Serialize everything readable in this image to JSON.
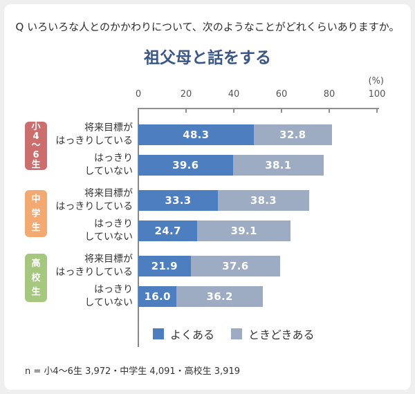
{
  "page": {
    "question": "Q いろいろな人とのかかわりについて、次のようなことがどれくらいありますか。",
    "title": "祖父母と話をする",
    "unit_label": "(%)",
    "footnote": "n = 小4〜6生 3,972・中学生 4,091・高校生 3,919"
  },
  "colors": {
    "title": "#3a5687",
    "bar_often": "#4d7ebf",
    "bar_sometimes": "#9dabc3",
    "axis": "#8f8f8f"
  },
  "chart_data": {
    "type": "bar",
    "orientation": "horizontal",
    "stacked": true,
    "unit": "%",
    "xlim": [
      0,
      100
    ],
    "x_ticks": [
      0,
      20,
      40,
      60,
      80,
      100
    ],
    "legend_position": "bottom",
    "legend": [
      {
        "label": "よくある",
        "color": "#4d7ebf"
      },
      {
        "label": "ときどきある",
        "color": "#9dabc3"
      }
    ],
    "groups": [
      {
        "group_label": "小4〜6生",
        "badge_color": "#cd6e6e",
        "rows": [
          {
            "label_lines": [
              "将来目標が",
              "はっきりしている"
            ],
            "values": [
              48.3,
              32.8
            ]
          },
          {
            "label_lines": [
              "はっきり",
              "していない"
            ],
            "values": [
              39.6,
              38.1
            ]
          }
        ]
      },
      {
        "group_label": "中学生",
        "badge_color": "#f3aa72",
        "rows": [
          {
            "label_lines": [
              "将来目標が",
              "はっきりしている"
            ],
            "values": [
              33.3,
              38.3
            ]
          },
          {
            "label_lines": [
              "はっきり",
              "していない"
            ],
            "values": [
              24.7,
              39.1
            ]
          }
        ]
      },
      {
        "group_label": "高校生",
        "badge_color": "#a5c87e",
        "rows": [
          {
            "label_lines": [
              "将来目標が",
              "はっきりしている"
            ],
            "values": [
              21.9,
              37.6
            ]
          },
          {
            "label_lines": [
              "はっきり",
              "していない"
            ],
            "values": [
              16.0,
              36.2
            ]
          }
        ]
      }
    ],
    "series": [
      {
        "name": "よくある",
        "values": [
          48.3,
          39.6,
          33.3,
          24.7,
          21.9,
          16.0
        ]
      },
      {
        "name": "ときどきある",
        "values": [
          32.8,
          38.1,
          38.3,
          39.1,
          37.6,
          36.2
        ]
      }
    ]
  }
}
